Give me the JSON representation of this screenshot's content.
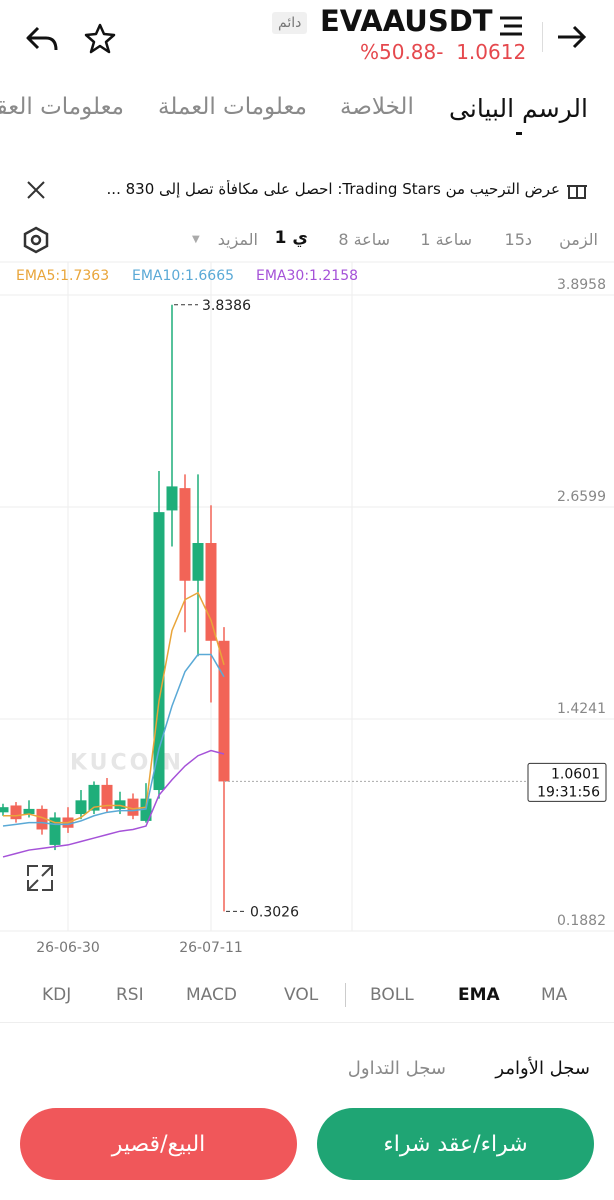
{
  "header": {
    "symbol": "EVAAUSDT",
    "badge": "دائم",
    "price": "1.0612",
    "change": "%50.88-"
  },
  "tabs": [
    "الرسم البيانى",
    "الخلاصة",
    "معلومات العملة",
    "معلومات العقد"
  ],
  "banner": "عرض الترحيب من Trading Stars: احصل على مكافأة تصل إلى 830 ...",
  "timeframes": [
    "الزمن",
    "15د",
    "1 ساعة",
    "8 ساعة",
    "1 ي",
    "المزيد"
  ],
  "chart_data": {
    "type": "candlestick",
    "watermark": "KUCOIN",
    "categories": [
      null,
      null,
      null,
      null,
      null,
      "26-06-30",
      null,
      null,
      null,
      null,
      null,
      null,
      null,
      null,
      null,
      null,
      "26-07-11",
      null
    ],
    "open": [
      0.88,
      0.92,
      0.87,
      0.9,
      0.69,
      0.85,
      0.87,
      0.89,
      1.04,
      0.9,
      0.96,
      0.83,
      1.01,
      2.64,
      2.77,
      2.23,
      2.45,
      1.88
    ],
    "high": [
      0.93,
      0.94,
      0.95,
      0.92,
      0.88,
      0.91,
      1.01,
      1.06,
      1.08,
      1.0,
      0.99,
      1.05,
      2.87,
      3.8386,
      2.85,
      2.85,
      2.67,
      1.96
    ],
    "low": [
      0.86,
      0.82,
      0.85,
      0.75,
      0.66,
      0.76,
      0.84,
      0.87,
      0.88,
      0.87,
      0.84,
      0.82,
      0.96,
      2.43,
      1.93,
      1.79,
      1.52,
      0.3026
    ],
    "close": [
      0.91,
      0.84,
      0.9,
      0.78,
      0.85,
      0.79,
      0.95,
      1.04,
      0.9,
      0.95,
      0.86,
      0.96,
      2.63,
      2.78,
      2.23,
      2.45,
      1.88,
      1.0601
    ],
    "up_color": "#1fae7a",
    "down_color": "#f26457",
    "series": [
      {
        "name": "EMA5:1.7363",
        "color": "#e9a53a",
        "values": [
          0.86,
          0.86,
          0.87,
          0.85,
          0.82,
          0.82,
          0.85,
          0.91,
          0.92,
          0.92,
          0.9,
          0.91,
          1.53,
          1.94,
          2.12,
          2.16,
          2.0,
          1.74
        ]
      },
      {
        "name": "EMA10:1.6665",
        "color": "#5aa9d6",
        "values": [
          0.8,
          0.81,
          0.82,
          0.82,
          0.81,
          0.81,
          0.83,
          0.86,
          0.88,
          0.89,
          0.89,
          0.9,
          1.25,
          1.5,
          1.7,
          1.8,
          1.8,
          1.67
        ]
      },
      {
        "name": "EMA30:1.2158",
        "color": "#a552d8",
        "values": [
          0.62,
          0.64,
          0.66,
          0.67,
          0.68,
          0.69,
          0.71,
          0.73,
          0.75,
          0.77,
          0.78,
          0.8,
          0.98,
          1.07,
          1.15,
          1.21,
          1.24,
          1.22
        ]
      }
    ],
    "ylim": [
      0.1882,
      3.8958
    ],
    "yticks": [
      0.1882,
      1.4241,
      2.6599,
      3.8958
    ],
    "max_label": 3.8386,
    "min_label": 0.3026,
    "last_price": 1.0601,
    "last_time": "19:31:56",
    "grid": true
  },
  "indicators": [
    "KDJ",
    "RSI",
    "MACD",
    "VOL",
    "BOLL",
    "EMA",
    "MA"
  ],
  "records": [
    "سجل الأوامر",
    "سجل التداول"
  ],
  "buttons": {
    "buy": "شراء/عقد شراء",
    "sell": "البيع/قصير"
  }
}
